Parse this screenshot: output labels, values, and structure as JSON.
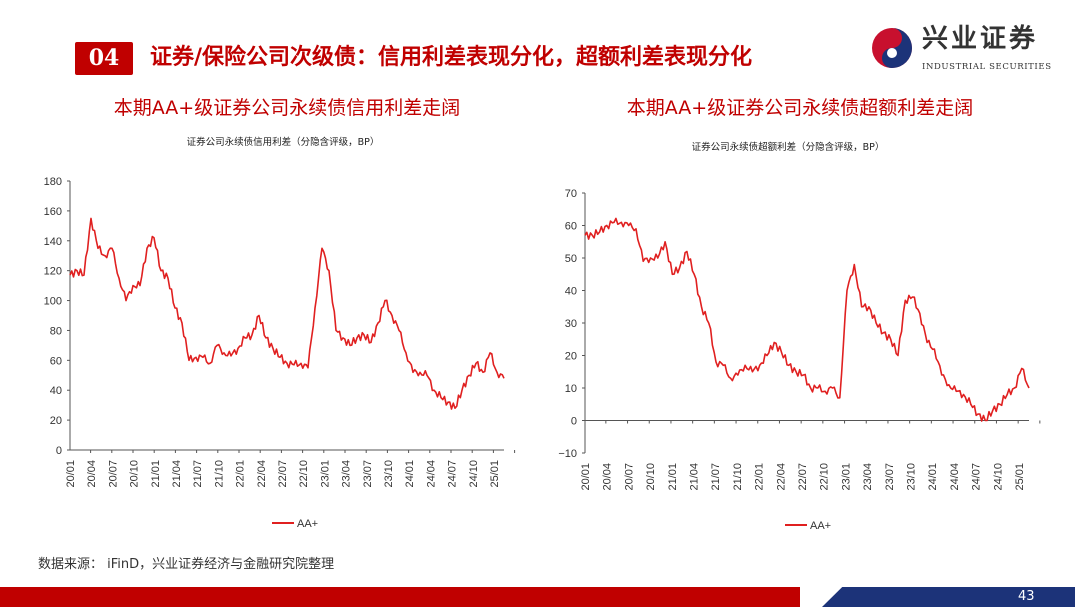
{
  "header": {
    "section_number": "04",
    "title": "证券/保险公司次级债：信用利差表现分化，超额利差表现分化"
  },
  "logo": {
    "cn": "兴业证券",
    "en": "INDUSTRIAL SECURITIES"
  },
  "source": "数据来源： iFinD，兴业证券经济与金融研究院整理",
  "page_number": "43",
  "colors": {
    "accent": "#c00000",
    "line": "#e02020",
    "footer_blue": "#1c3379"
  },
  "chart_data": [
    {
      "type": "line",
      "title": "本期AA+级证券公司永续债信用利差走阔",
      "subtitle": "证券公司永续债信用利差（分隐含评级，BP）",
      "ylim": [
        0,
        180
      ],
      "yticks": [
        0,
        20,
        40,
        60,
        80,
        100,
        120,
        140,
        160,
        180
      ],
      "xticks": [
        "20/01",
        "20/04",
        "20/07",
        "20/10",
        "21/01",
        "21/04",
        "21/07",
        "21/10",
        "22/01",
        "22/04",
        "22/07",
        "22/10",
        "23/01",
        "23/04",
        "23/07",
        "23/10",
        "24/01",
        "24/04",
        "24/07",
        "24/10",
        "25/01"
      ],
      "legend": "bottom",
      "series": [
        {
          "name": "AA+",
          "values": [
            117,
            120,
            117,
            155,
            135,
            130,
            135,
            115,
            100,
            110,
            110,
            135,
            142,
            120,
            115,
            95,
            85,
            60,
            62,
            62,
            58,
            70,
            65,
            63,
            68,
            75,
            77,
            90,
            75,
            68,
            62,
            58,
            57,
            58,
            55,
            95,
            135,
            120,
            80,
            75,
            70,
            75,
            77,
            72,
            85,
            100,
            90,
            80,
            65,
            52,
            52,
            50,
            40,
            35,
            32,
            28,
            40,
            50,
            58,
            52,
            65,
            52,
            48
          ]
        }
      ]
    },
    {
      "type": "line",
      "title": "本期AA+级证券公司永续债超额利差走阔",
      "subtitle": "证券公司永续债超额利差（分隐含评级，BP）",
      "ylim": [
        -10,
        70
      ],
      "yticks": [
        -10,
        0,
        10,
        20,
        30,
        40,
        50,
        60,
        70
      ],
      "xticks": [
        "20/01",
        "20/04",
        "20/07",
        "20/10",
        "21/01",
        "21/04",
        "21/07",
        "21/10",
        "22/01",
        "22/04",
        "22/07",
        "22/10",
        "23/01",
        "23/04",
        "23/07",
        "23/10",
        "24/01",
        "24/04",
        "24/07",
        "24/10",
        "25/01"
      ],
      "legend": "bottom",
      "series": [
        {
          "name": "AA+",
          "values": [
            57,
            57,
            58,
            60,
            61,
            61,
            60,
            59,
            49,
            50,
            50,
            55,
            45,
            47,
            52,
            45,
            35,
            30,
            18,
            17,
            13,
            14,
            17,
            15,
            17,
            20,
            24,
            21,
            17,
            15,
            14,
            10,
            10,
            9,
            10,
            7,
            40,
            48,
            35,
            35,
            30,
            27,
            25,
            20,
            37,
            38,
            33,
            24,
            22,
            14,
            11,
            9,
            8,
            5,
            2,
            0,
            3,
            5,
            8,
            10,
            16,
            10
          ]
        }
      ]
    }
  ]
}
